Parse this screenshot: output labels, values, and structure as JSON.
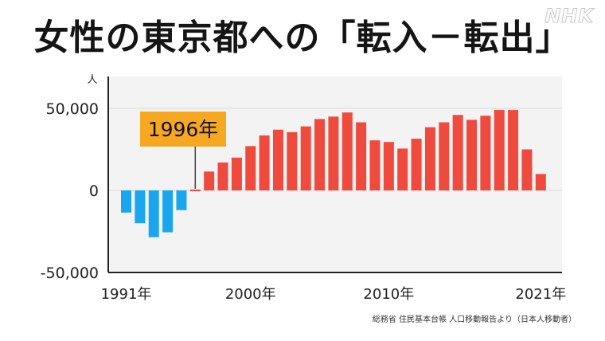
{
  "title": "女性の東京都への「転入－転出」",
  "logo": "NHK",
  "source": "総務省 住民基本台帳 人口移動報告より（日本人移動者）",
  "colors": {
    "positive": "#ee4a3e",
    "negative": "#1aa6ee",
    "callout_bg": "#f7a823",
    "plot_bg": "#f3f3f3",
    "grid": "#d8d8d8"
  },
  "chart_data": {
    "type": "bar",
    "ylabel": "人",
    "ylim": [
      -50000,
      50000
    ],
    "yticks": [
      50000,
      0,
      -50000
    ],
    "ytick_labels": [
      "50,000",
      "0",
      "-50,000"
    ],
    "grid": true,
    "x": [
      1991,
      1992,
      1993,
      1994,
      1995,
      1996,
      1997,
      1998,
      1999,
      2000,
      2001,
      2002,
      2003,
      2004,
      2005,
      2006,
      2007,
      2008,
      2009,
      2010,
      2011,
      2012,
      2013,
      2014,
      2015,
      2016,
      2017,
      2018,
      2019,
      2020,
      2021
    ],
    "xtick_labels": [
      {
        "year": 1991,
        "label": "1991年"
      },
      {
        "year": 2000,
        "label": "2000年"
      },
      {
        "year": 2010,
        "label": "2010年"
      },
      {
        "year": 2021,
        "label": "2021年"
      }
    ],
    "values": [
      -13500,
      -20000,
      -28500,
      -25500,
      -12000,
      800,
      11500,
      17000,
      20000,
      27000,
      33500,
      37000,
      35500,
      39000,
      43500,
      45000,
      47500,
      41500,
      30500,
      29500,
      25500,
      31500,
      38500,
      41500,
      46000,
      43000,
      45500,
      49000,
      49000,
      25000,
      10000
    ],
    "annotation": {
      "year": 1996,
      "label": "1996年"
    }
  }
}
